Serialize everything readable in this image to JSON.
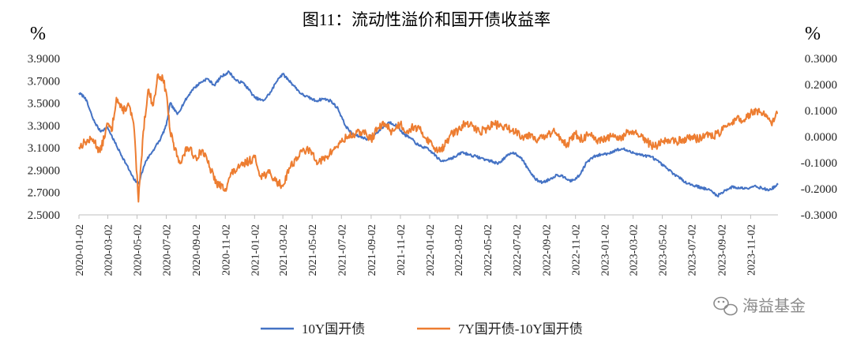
{
  "chart_data": {
    "type": "line",
    "title": "图11：流动性溢价和国开债收益率",
    "left_unit": "%",
    "right_unit": "%",
    "y_left": {
      "min": 2.5,
      "max": 3.9,
      "ticks": [
        "3.9000",
        "3.7000",
        "3.5000",
        "3.3000",
        "3.1000",
        "2.9000",
        "2.7000",
        "2.5000"
      ]
    },
    "y_right": {
      "min": -0.3,
      "max": 0.3,
      "ticks": [
        "0.3000",
        "0.2000",
        "0.1000",
        "0.0000",
        "-0.1000",
        "-0.2000",
        "-0.3000"
      ]
    },
    "x_range": [
      "2020-01-02",
      "2023-12-29"
    ],
    "x_ticks": [
      "2020-01-02",
      "2020-03-02",
      "2020-05-02",
      "2020-07-02",
      "2020-09-02",
      "2020-11-02",
      "2021-01-02",
      "2021-03-02",
      "2021-05-02",
      "2021-07-02",
      "2021-09-02",
      "2021-11-02",
      "2022-01-02",
      "2022-03-02",
      "2022-05-02",
      "2022-07-02",
      "2022-09-02",
      "2022-11-02",
      "2023-01-02",
      "2023-03-02",
      "2023-05-02",
      "2023-07-02",
      "2023-09-02",
      "2023-11-02"
    ],
    "series": [
      {
        "name": "10Y国开债",
        "axis": "left",
        "color": "#4472C4",
        "points": [
          [
            "2020-01-02",
            3.59
          ],
          [
            "2020-01-15",
            3.55
          ],
          [
            "2020-02-01",
            3.35
          ],
          [
            "2020-02-15",
            3.25
          ],
          [
            "2020-03-02",
            3.28
          ],
          [
            "2020-03-20",
            3.12
          ],
          [
            "2020-04-10",
            2.95
          ],
          [
            "2020-04-25",
            2.82
          ],
          [
            "2020-05-05",
            2.78
          ],
          [
            "2020-05-20",
            2.98
          ],
          [
            "2020-06-05",
            3.08
          ],
          [
            "2020-06-20",
            3.18
          ],
          [
            "2020-07-02",
            3.3
          ],
          [
            "2020-07-10",
            3.5
          ],
          [
            "2020-07-25",
            3.4
          ],
          [
            "2020-08-10",
            3.52
          ],
          [
            "2020-08-25",
            3.62
          ],
          [
            "2020-09-10",
            3.68
          ],
          [
            "2020-09-25",
            3.72
          ],
          [
            "2020-10-10",
            3.66
          ],
          [
            "2020-10-25",
            3.74
          ],
          [
            "2020-11-10",
            3.78
          ],
          [
            "2020-11-25",
            3.7
          ],
          [
            "2020-12-10",
            3.68
          ],
          [
            "2020-12-25",
            3.6
          ],
          [
            "2021-01-02",
            3.55
          ],
          [
            "2021-01-20",
            3.52
          ],
          [
            "2021-02-05",
            3.6
          ],
          [
            "2021-02-20",
            3.72
          ],
          [
            "2021-03-02",
            3.76
          ],
          [
            "2021-03-20",
            3.68
          ],
          [
            "2021-04-10",
            3.58
          ],
          [
            "2021-04-25",
            3.55
          ],
          [
            "2021-05-10",
            3.52
          ],
          [
            "2021-05-25",
            3.54
          ],
          [
            "2021-06-10",
            3.52
          ],
          [
            "2021-06-25",
            3.45
          ],
          [
            "2021-07-10",
            3.3
          ],
          [
            "2021-07-25",
            3.22
          ],
          [
            "2021-08-10",
            3.2
          ],
          [
            "2021-08-25",
            3.18
          ],
          [
            "2021-09-10",
            3.22
          ],
          [
            "2021-09-25",
            3.28
          ],
          [
            "2021-10-10",
            3.33
          ],
          [
            "2021-10-25",
            3.3
          ],
          [
            "2021-11-10",
            3.22
          ],
          [
            "2021-11-25",
            3.18
          ],
          [
            "2021-12-10",
            3.12
          ],
          [
            "2021-12-25",
            3.1
          ],
          [
            "2022-01-10",
            3.05
          ],
          [
            "2022-01-25",
            2.98
          ],
          [
            "2022-02-10",
            3.0
          ],
          [
            "2022-02-25",
            3.02
          ],
          [
            "2022-03-10",
            3.06
          ],
          [
            "2022-03-25",
            3.04
          ],
          [
            "2022-04-10",
            3.02
          ],
          [
            "2022-04-25",
            3.0
          ],
          [
            "2022-05-10",
            2.98
          ],
          [
            "2022-05-25",
            2.96
          ],
          [
            "2022-06-10",
            3.02
          ],
          [
            "2022-06-25",
            3.06
          ],
          [
            "2022-07-10",
            3.02
          ],
          [
            "2022-07-25",
            2.92
          ],
          [
            "2022-08-10",
            2.82
          ],
          [
            "2022-08-25",
            2.79
          ],
          [
            "2022-09-10",
            2.82
          ],
          [
            "2022-09-25",
            2.86
          ],
          [
            "2022-10-10",
            2.84
          ],
          [
            "2022-10-25",
            2.8
          ],
          [
            "2022-11-10",
            2.85
          ],
          [
            "2022-11-25",
            2.97
          ],
          [
            "2022-12-10",
            3.02
          ],
          [
            "2022-12-25",
            3.04
          ],
          [
            "2023-01-10",
            3.05
          ],
          [
            "2023-01-25",
            3.08
          ],
          [
            "2023-02-10",
            3.09
          ],
          [
            "2023-02-25",
            3.06
          ],
          [
            "2023-03-10",
            3.05
          ],
          [
            "2023-03-25",
            3.03
          ],
          [
            "2023-04-10",
            3.02
          ],
          [
            "2023-04-25",
            2.97
          ],
          [
            "2023-05-10",
            2.92
          ],
          [
            "2023-05-25",
            2.87
          ],
          [
            "2023-06-10",
            2.82
          ],
          [
            "2023-06-25",
            2.78
          ],
          [
            "2023-07-10",
            2.76
          ],
          [
            "2023-07-25",
            2.74
          ],
          [
            "2023-08-10",
            2.72
          ],
          [
            "2023-08-25",
            2.67
          ],
          [
            "2023-09-10",
            2.72
          ],
          [
            "2023-09-25",
            2.75
          ],
          [
            "2023-10-10",
            2.74
          ],
          [
            "2023-10-25",
            2.74
          ],
          [
            "2023-11-10",
            2.76
          ],
          [
            "2023-11-25",
            2.74
          ],
          [
            "2023-12-10",
            2.72
          ],
          [
            "2023-12-29",
            2.77
          ]
        ]
      },
      {
        "name": "7Y国开债-10Y国开债",
        "axis": "right",
        "color": "#ED7D31",
        "points": [
          [
            "2020-01-02",
            -0.04
          ],
          [
            "2020-01-15",
            -0.02
          ],
          [
            "2020-02-01",
            -0.01
          ],
          [
            "2020-02-15",
            -0.06
          ],
          [
            "2020-03-02",
            0.05
          ],
          [
            "2020-03-10",
            0.02
          ],
          [
            "2020-03-20",
            0.15
          ],
          [
            "2020-04-01",
            0.1
          ],
          [
            "2020-04-15",
            0.12
          ],
          [
            "2020-04-25",
            0.05
          ],
          [
            "2020-05-05",
            -0.25
          ],
          [
            "2020-05-15",
            0.02
          ],
          [
            "2020-05-25",
            0.18
          ],
          [
            "2020-06-05",
            0.12
          ],
          [
            "2020-06-15",
            0.24
          ],
          [
            "2020-06-25",
            0.22
          ],
          [
            "2020-07-02",
            0.17
          ],
          [
            "2020-07-10",
            0.02
          ],
          [
            "2020-07-20",
            -0.05
          ],
          [
            "2020-08-01",
            -0.1
          ],
          [
            "2020-08-15",
            -0.04
          ],
          [
            "2020-09-02",
            -0.08
          ],
          [
            "2020-09-15",
            -0.05
          ],
          [
            "2020-10-01",
            -0.12
          ],
          [
            "2020-10-15",
            -0.18
          ],
          [
            "2020-11-02",
            -0.2
          ],
          [
            "2020-11-15",
            -0.14
          ],
          [
            "2020-12-01",
            -0.12
          ],
          [
            "2020-12-15",
            -0.1
          ],
          [
            "2021-01-02",
            -0.08
          ],
          [
            "2021-01-15",
            -0.15
          ],
          [
            "2021-02-01",
            -0.14
          ],
          [
            "2021-02-15",
            -0.17
          ],
          [
            "2021-03-02",
            -0.19
          ],
          [
            "2021-03-15",
            -0.12
          ],
          [
            "2021-04-01",
            -0.08
          ],
          [
            "2021-04-15",
            -0.05
          ],
          [
            "2021-05-02",
            -0.06
          ],
          [
            "2021-05-15",
            -0.1
          ],
          [
            "2021-06-01",
            -0.08
          ],
          [
            "2021-06-15",
            -0.05
          ],
          [
            "2021-07-02",
            -0.02
          ],
          [
            "2021-07-15",
            0.0
          ],
          [
            "2021-08-01",
            0.01
          ],
          [
            "2021-08-15",
            0.02
          ],
          [
            "2021-09-02",
            -0.01
          ],
          [
            "2021-09-15",
            0.03
          ],
          [
            "2021-10-01",
            0.05
          ],
          [
            "2021-10-15",
            0.02
          ],
          [
            "2021-11-02",
            0.05
          ],
          [
            "2021-11-15",
            0.02
          ],
          [
            "2021-12-01",
            0.04
          ],
          [
            "2021-12-15",
            0.02
          ],
          [
            "2022-01-02",
            -0.02
          ],
          [
            "2022-01-15",
            -0.05
          ],
          [
            "2022-02-01",
            -0.04
          ],
          [
            "2022-02-15",
            0.01
          ],
          [
            "2022-03-02",
            0.02
          ],
          [
            "2022-03-15",
            0.05
          ],
          [
            "2022-04-01",
            0.04
          ],
          [
            "2022-04-15",
            0.02
          ],
          [
            "2022-05-02",
            0.03
          ],
          [
            "2022-05-15",
            0.05
          ],
          [
            "2022-06-01",
            0.04
          ],
          [
            "2022-06-15",
            0.03
          ],
          [
            "2022-07-02",
            0.02
          ],
          [
            "2022-07-15",
            0.0
          ],
          [
            "2022-08-01",
            0.01
          ],
          [
            "2022-08-15",
            -0.01
          ],
          [
            "2022-09-02",
            0.0
          ],
          [
            "2022-09-15",
            0.02
          ],
          [
            "2022-10-01",
            0.0
          ],
          [
            "2022-10-15",
            -0.03
          ],
          [
            "2022-11-02",
            0.01
          ],
          [
            "2022-11-15",
            -0.01
          ],
          [
            "2022-12-01",
            0.01
          ],
          [
            "2022-12-15",
            -0.02
          ],
          [
            "2023-01-02",
            -0.01
          ],
          [
            "2023-01-15",
            0.0
          ],
          [
            "2023-02-01",
            -0.01
          ],
          [
            "2023-02-15",
            0.01
          ],
          [
            "2023-03-02",
            0.02
          ],
          [
            "2023-03-15",
            0.0
          ],
          [
            "2023-04-01",
            -0.02
          ],
          [
            "2023-04-15",
            -0.04
          ],
          [
            "2023-05-02",
            -0.02
          ],
          [
            "2023-05-15",
            -0.01
          ],
          [
            "2023-06-01",
            -0.02
          ],
          [
            "2023-06-15",
            -0.01
          ],
          [
            "2023-07-02",
            0.0
          ],
          [
            "2023-07-15",
            -0.01
          ],
          [
            "2023-08-01",
            0.01
          ],
          [
            "2023-08-15",
            0.0
          ],
          [
            "2023-09-02",
            0.02
          ],
          [
            "2023-09-15",
            0.04
          ],
          [
            "2023-10-01",
            0.07
          ],
          [
            "2023-10-15",
            0.06
          ],
          [
            "2023-11-02",
            0.09
          ],
          [
            "2023-11-15",
            0.1
          ],
          [
            "2023-12-01",
            0.08
          ],
          [
            "2023-12-15",
            0.05
          ],
          [
            "2023-12-29",
            0.09
          ]
        ]
      }
    ],
    "legend": {
      "position": "bottom"
    }
  },
  "watermark": "海益基金"
}
